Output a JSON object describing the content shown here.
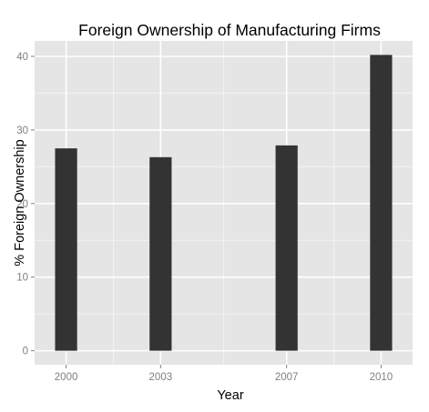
{
  "chart_data": {
    "type": "bar",
    "title": "Foreign Ownership of Manufacturing Firms",
    "xlabel": "Year",
    "ylabel": "% Foreign Ownership",
    "x": [
      2000,
      2003,
      2007,
      2010
    ],
    "values": [
      27.5,
      26.3,
      27.9,
      40.2
    ],
    "xlim": [
      1999,
      2011
    ],
    "ylim": [
      -1.9,
      42.1
    ],
    "yticks": [
      0,
      10,
      20,
      30,
      40
    ],
    "xticks": [
      2000,
      2003,
      2007,
      2010
    ],
    "grid": true,
    "colors": {
      "panel": "#e5e5e5",
      "grid_major": "#ffffff",
      "grid_minor": "#f2f2f2",
      "bar": "#333333",
      "tick_label": "#7f7f7f"
    }
  }
}
